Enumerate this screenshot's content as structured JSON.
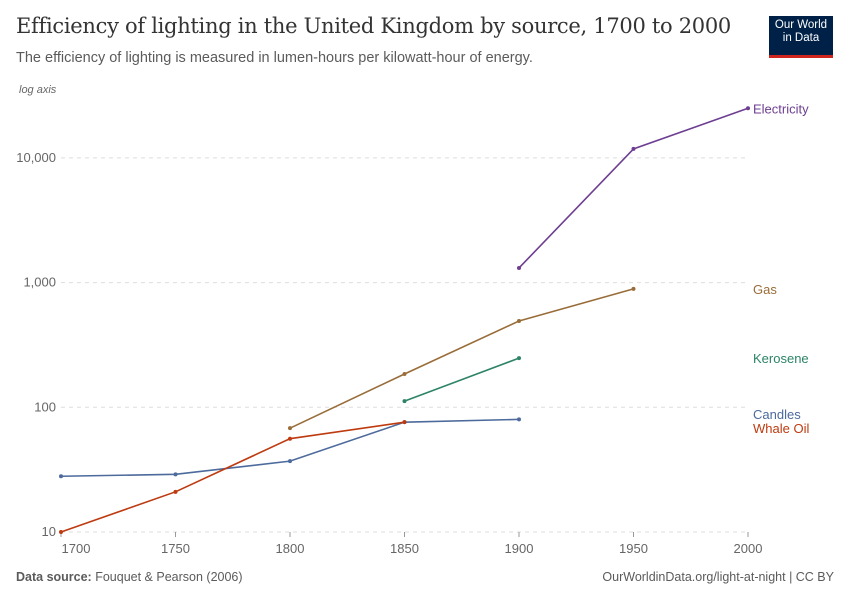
{
  "header": {
    "title": "Efficiency of lighting in the United Kingdom by source, 1700 to 2000",
    "subtitle": "The efficiency of lighting is measured in lumen-hours per kilowatt-hour of energy.",
    "logo_line1": "Our World",
    "logo_line2": "in Data"
  },
  "footer": {
    "source_label": "Data source:",
    "source": "Fouquet & Pearson (2006)",
    "link": "OurWorldinData.org/light-at-night | CC BY"
  },
  "chart_data": {
    "type": "line",
    "title": "Efficiency of lighting in the United Kingdom by source, 1700 to 2000",
    "y_scale": "log",
    "y_scale_note": "log axis",
    "ylim": [
      10,
      30000
    ],
    "xlim": [
      1700,
      2000
    ],
    "y_ticks": [
      {
        "value": 10,
        "label": "10"
      },
      {
        "value": 100,
        "label": "100"
      },
      {
        "value": 1000,
        "label": "1,000"
      },
      {
        "value": 10000,
        "label": "10,000"
      }
    ],
    "x_ticks": [
      {
        "value": 1700,
        "label": "1700"
      },
      {
        "value": 1750,
        "label": "1750"
      },
      {
        "value": 1800,
        "label": "1800"
      },
      {
        "value": 1850,
        "label": "1850"
      },
      {
        "value": 1900,
        "label": "1900"
      },
      {
        "value": 1950,
        "label": "1950"
      },
      {
        "value": 2000,
        "label": "2000"
      }
    ],
    "grid": "horizontal dashed",
    "legend": "right, labels at line ends",
    "series": [
      {
        "name": "Electricity",
        "color": "#6d3e91",
        "x": [
          1900,
          1950,
          2000
        ],
        "y": [
          1310,
          11800,
          25000
        ]
      },
      {
        "name": "Gas",
        "color": "#996d39",
        "x": [
          1800,
          1850,
          1900,
          1950
        ],
        "y": [
          68,
          185,
          492,
          890
        ]
      },
      {
        "name": "Kerosene",
        "color": "#2c8465",
        "x": [
          1850,
          1900
        ],
        "y": [
          112,
          248
        ]
      },
      {
        "name": "Candles",
        "color": "#4c6a9c",
        "x": [
          1700,
          1750,
          1800,
          1850,
          1900
        ],
        "y": [
          28,
          29,
          37,
          76,
          80
        ]
      },
      {
        "name": "Whale Oil",
        "color": "#be3a10",
        "x": [
          1700,
          1750,
          1800,
          1850
        ],
        "y": [
          10,
          21,
          56,
          76
        ]
      }
    ],
    "label_y": {
      "Electricity": 25000,
      "Gas": 890,
      "Kerosene": 248,
      "Candles": 88,
      "Whale Oil": 68
    }
  }
}
